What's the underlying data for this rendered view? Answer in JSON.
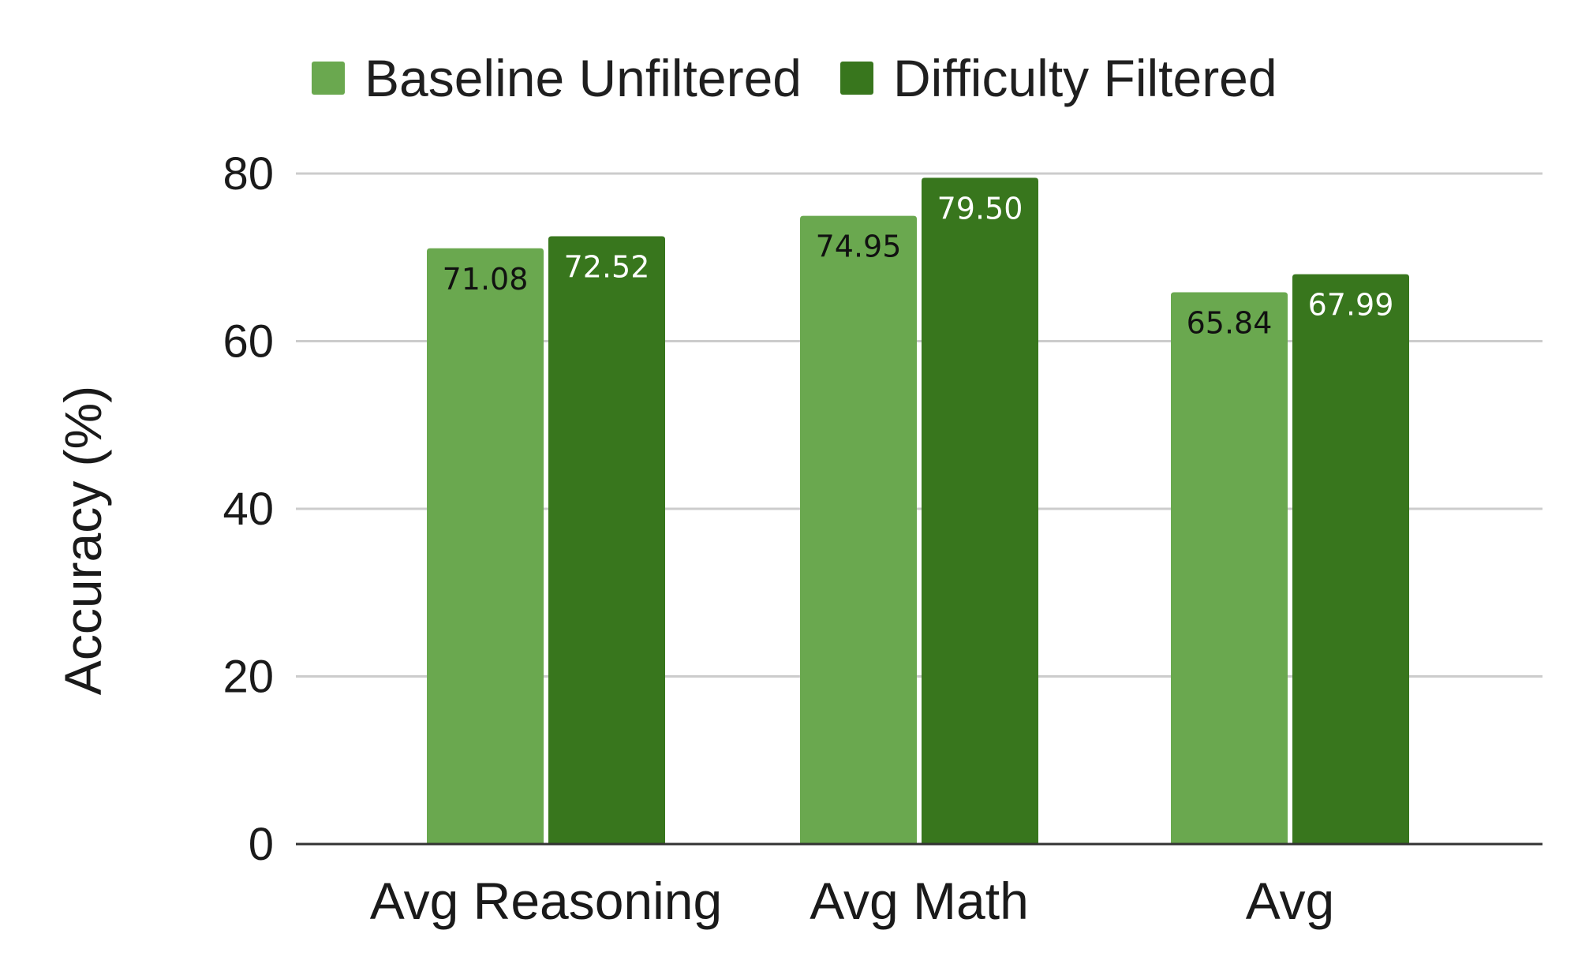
{
  "chart_data": {
    "type": "bar",
    "title": "",
    "xlabel": "",
    "ylabel": "Accuracy (%)",
    "ylim": [
      0,
      80
    ],
    "yticks": [
      0,
      20,
      40,
      60,
      80
    ],
    "grid": true,
    "legend_position": "top",
    "categories": [
      "Avg Reasoning",
      "Avg Math",
      "Avg"
    ],
    "series": [
      {
        "name": "Baseline Unfiltered",
        "color": "#6aa84f",
        "label_color": "#111111",
        "values": [
          71.08,
          74.95,
          65.84
        ],
        "labels": [
          "71.08",
          "74.95",
          "65.84"
        ]
      },
      {
        "name": "Difficulty Filtered",
        "color": "#38761d",
        "label_color": "#ffffff",
        "values": [
          72.52,
          79.5,
          67.99
        ],
        "labels": [
          "72.52",
          "79.50",
          "67.99"
        ]
      }
    ]
  }
}
